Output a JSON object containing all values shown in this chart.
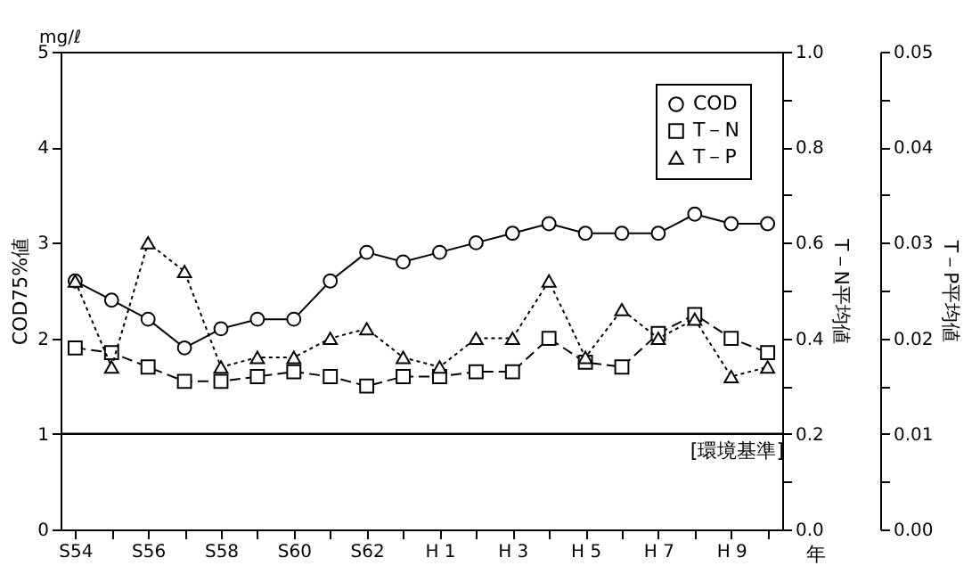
{
  "chart_data": {
    "type": "line",
    "categories": [
      "S54",
      null,
      "S56",
      null,
      "S58",
      null,
      "S60",
      null,
      "S62",
      null,
      "H 1",
      null,
      "H 3",
      null,
      "H 5",
      null,
      "H 7",
      null,
      "H 9",
      null
    ],
    "xlabel": "年",
    "ylabel": "COD75%値",
    "y2label": "T－N平均値",
    "y3label": "T－P平均値",
    "annotations": [
      "mg/ℓ"
    ],
    "series": [
      {
        "name": "COD",
        "color": "#000000",
        "line_style": "solid",
        "marker": "circle",
        "values": [
          2.6,
          2.4,
          2.2,
          1.9,
          2.1,
          2.2,
          2.2,
          2.6,
          2.9,
          2.8,
          2.9,
          3.0,
          3.1,
          3.2,
          3.1,
          3.1,
          3.1,
          3.3,
          3.2,
          3.2
        ]
      },
      {
        "name": "T－N",
        "color": "#000000",
        "line_style": "dashed",
        "marker": "square",
        "axis": "y2",
        "values": [
          0.38,
          0.37,
          0.34,
          0.31,
          0.31,
          0.32,
          0.33,
          0.32,
          0.3,
          0.32,
          0.32,
          0.33,
          0.33,
          0.4,
          0.35,
          0.34,
          0.41,
          0.45,
          0.4,
          0.37
        ]
      },
      {
        "name": "T－P",
        "color": "#000000",
        "line_style": "dotted",
        "marker": "triangle",
        "axis": "y3",
        "values": [
          0.026,
          0.017,
          0.03,
          0.027,
          0.017,
          0.018,
          0.018,
          0.02,
          0.021,
          0.018,
          0.017,
          0.02,
          0.02,
          0.026,
          0.018,
          0.023,
          0.02,
          0.022,
          0.016,
          0.017
        ]
      }
    ],
    "ylim": [
      0,
      5
    ],
    "yticks": [
      0,
      1,
      2,
      3,
      4,
      5
    ],
    "y2lim": [
      0,
      1.0
    ],
    "y2ticks": [
      {
        "value": 0,
        "label": "0.0"
      },
      {
        "value": 0.1,
        "label": null
      },
      {
        "value": 0.2,
        "label": "0.2"
      },
      {
        "value": 0.3,
        "label": null
      },
      {
        "value": 0.4,
        "label": "0.4"
      },
      {
        "value": 0.5,
        "label": null
      },
      {
        "value": 0.6,
        "label": "0.6"
      },
      {
        "value": 0.7,
        "label": null
      },
      {
        "value": 0.8,
        "label": "0.8"
      },
      {
        "value": 0.9,
        "label": null
      },
      {
        "value": 1.0,
        "label": "1.0"
      }
    ],
    "y3lim": [
      0,
      0.05
    ],
    "y3ticks": [
      {
        "value": 0,
        "label": "0.00"
      },
      {
        "value": 0.005,
        "label": null
      },
      {
        "value": 0.01,
        "label": "0.01"
      },
      {
        "value": 0.015,
        "label": null
      },
      {
        "value": 0.02,
        "label": "0.02"
      },
      {
        "value": 0.025,
        "label": null
      },
      {
        "value": 0.03,
        "label": "0.03"
      },
      {
        "value": 0.035,
        "label": null
      },
      {
        "value": 0.04,
        "label": "0.04"
      },
      {
        "value": 0.045,
        "label": null
      },
      {
        "value": 0.05,
        "label": "0.05"
      }
    ],
    "ref_lines": [
      {
        "axis": "y",
        "value": 1,
        "label": "[環境基準]",
        "color": "#000000",
        "line_style": "solid"
      }
    ],
    "grid": false,
    "legend": "top right"
  }
}
